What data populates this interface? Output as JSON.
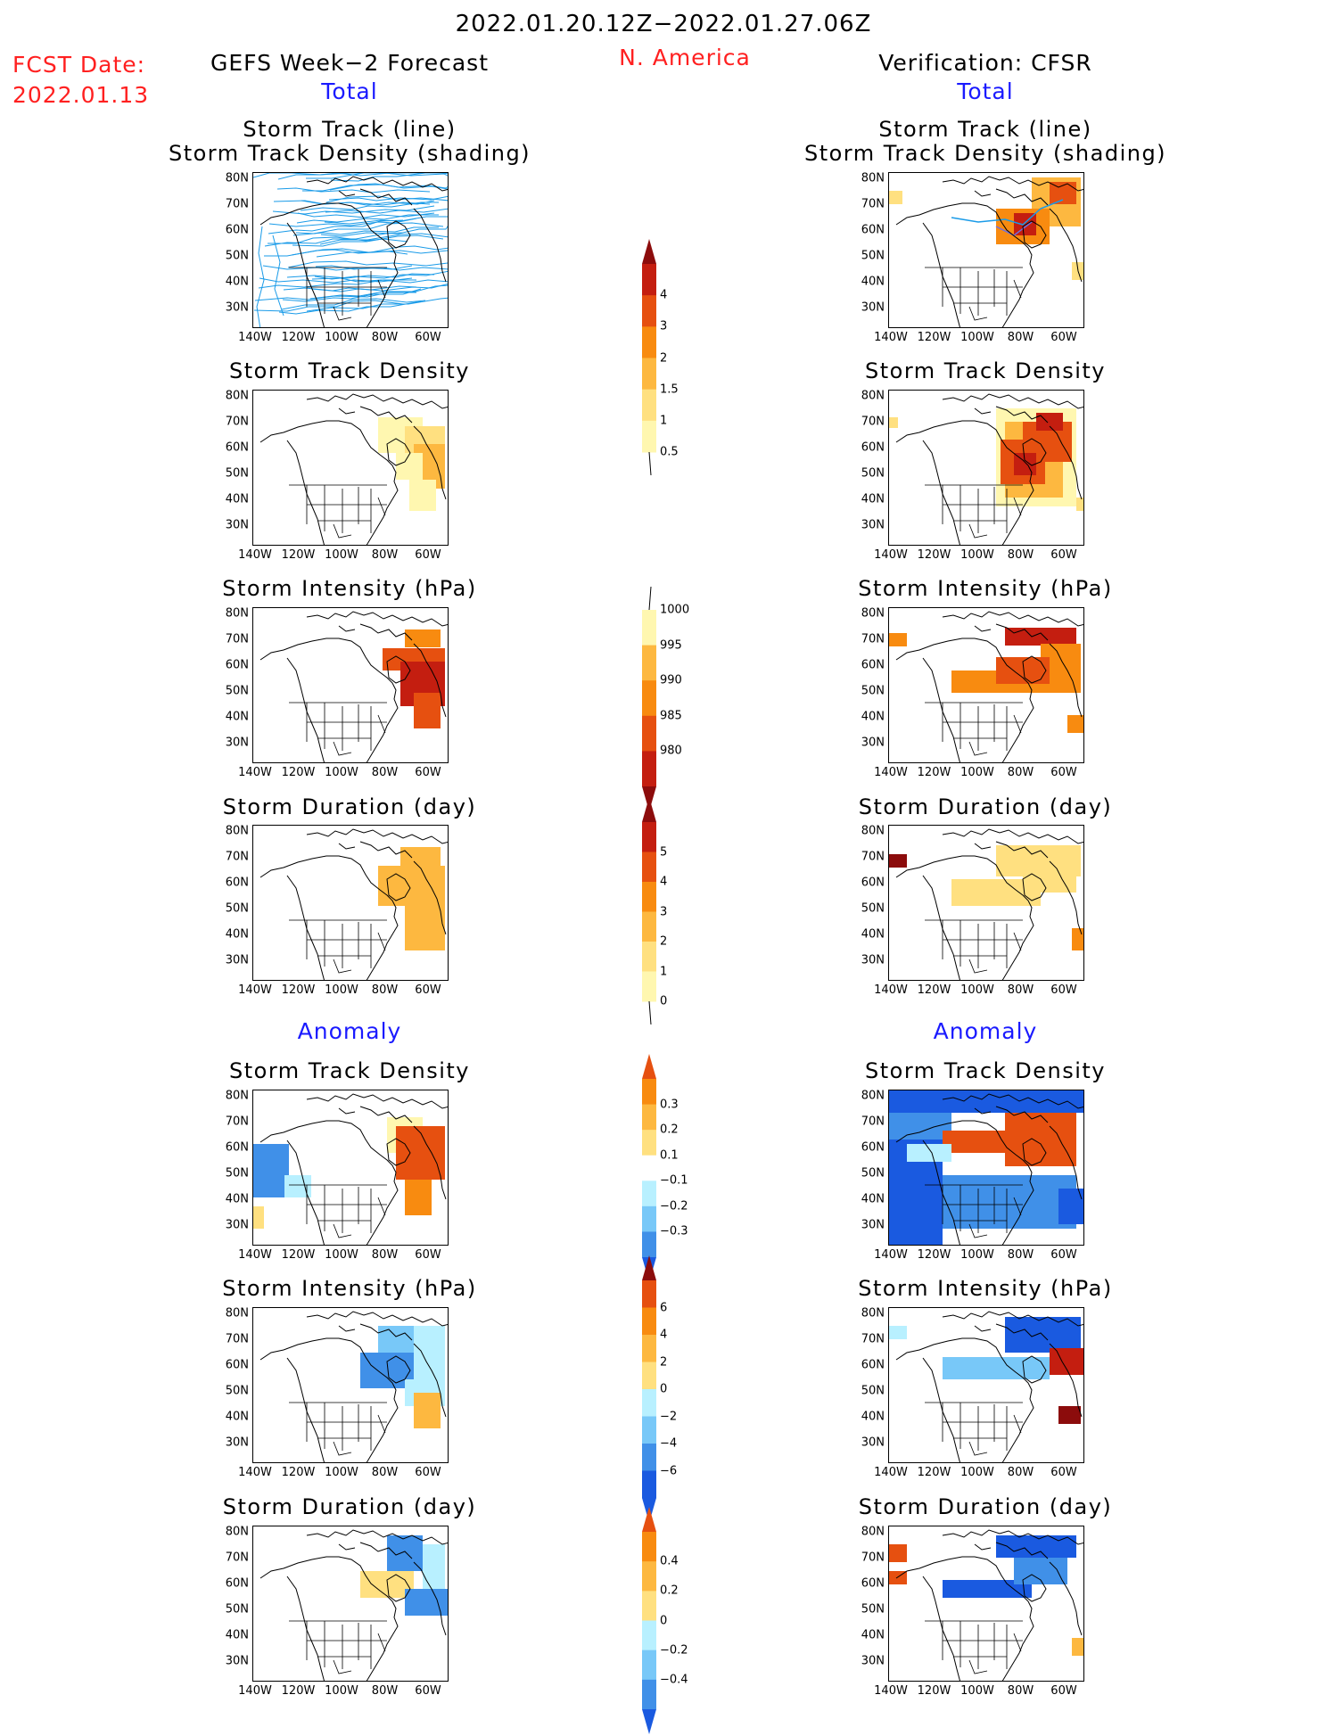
{
  "header": {
    "date_range": "2022.01.20.12Z−2022.01.27.06Z",
    "fcst_label": "FCST Date:",
    "fcst_date": "2022.01.13",
    "left_title": "GEFS Week−2 Forecast",
    "region": "N. America",
    "right_title": "Verification: CFSR",
    "total_left": "Total",
    "total_right": "Total",
    "anomaly_left": "Anomaly",
    "anomaly_right": "Anomaly"
  },
  "panel_titles": {
    "track": [
      "Storm Track (line)",
      "Storm Track Density (shading)"
    ],
    "density": "Storm Track Density",
    "intensity": "Storm Intensity (hPa)",
    "duration": "Storm Duration (day)"
  },
  "axes": {
    "lat_ticks": [
      "80N",
      "70N",
      "60N",
      "50N",
      "40N",
      "30N"
    ],
    "lon_ticks": [
      "140W",
      "120W",
      "100W",
      "80W",
      "60W"
    ]
  },
  "colors": {
    "warm": [
      "#fff7b0",
      "#ffe080",
      "#fdb840",
      "#f88b10",
      "#e65010",
      "#c41e10",
      "#8c0c0c"
    ],
    "cool": [
      "#b8f0ff",
      "#78c8f8",
      "#4090e8",
      "#1a5ae0"
    ],
    "track_line": "#1a9be8"
  },
  "colorbars": [
    {
      "id": "density-total",
      "labels": [
        "4",
        "3",
        "2",
        "1.5",
        "1",
        "0.5"
      ]
    },
    {
      "id": "intensity-total",
      "labels": [
        "1000",
        "995",
        "990",
        "985",
        "980"
      ]
    },
    {
      "id": "duration-total",
      "labels": [
        "5",
        "4",
        "3",
        "2",
        "1",
        "0"
      ]
    },
    {
      "id": "density-anomaly",
      "labels": [
        "0.3",
        "0.2",
        "0.1",
        "−0.1",
        "−0.2",
        "−0.3"
      ]
    },
    {
      "id": "intensity-anomaly",
      "labels": [
        "6",
        "4",
        "2",
        "0",
        "−2",
        "−4",
        "−6"
      ]
    },
    {
      "id": "duration-anomaly",
      "labels": [
        "0.4",
        "0.2",
        "0",
        "−0.2",
        "−0.4"
      ]
    }
  ]
}
